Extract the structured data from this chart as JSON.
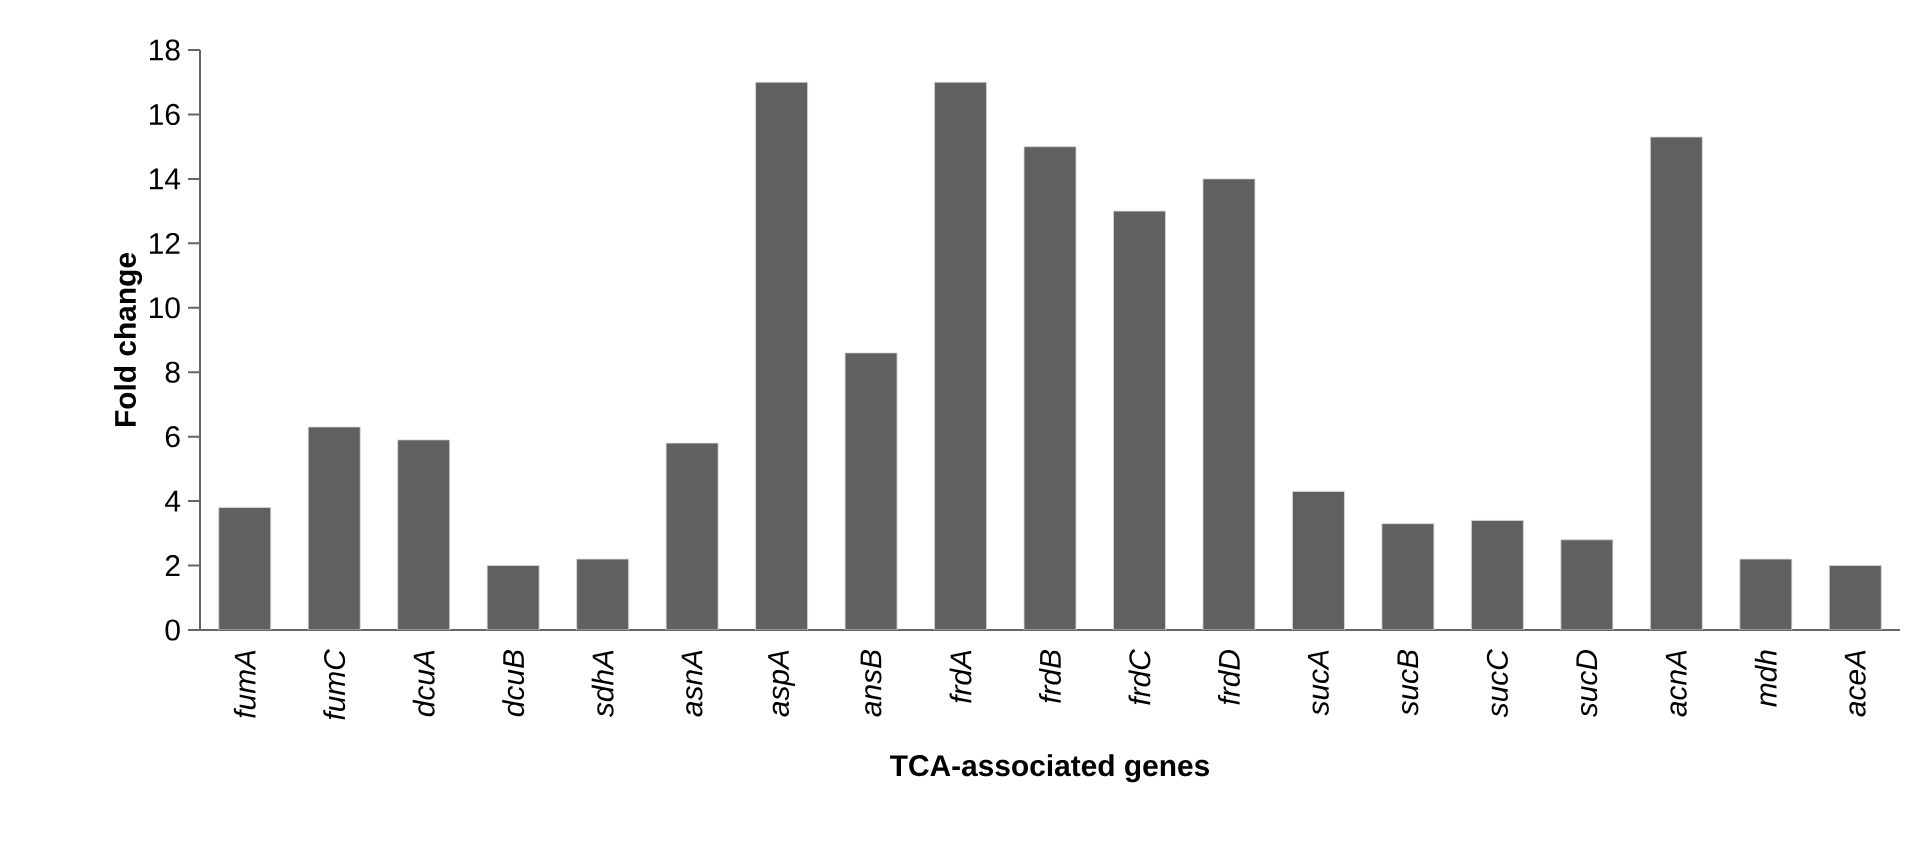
{
  "chart_data": {
    "type": "bar",
    "xlabel": "TCA-associated genes",
    "ylabel": "Fold change",
    "categories": [
      "*fumA*",
      "*fumC*",
      "*dcuA*",
      "*dcuB*",
      "*sdhA*",
      "*asnA*",
      "*aspA*",
      "*ansB*",
      "*frdA*",
      "*frdB*",
      "*frdC*",
      "*frdD*",
      "*sucA*",
      "*sucB*",
      "*sucC*",
      "*sucD*",
      "*acnA*",
      "*mdh*",
      "*aceA*"
    ],
    "values": [
      3.8,
      6.3,
      5.9,
      2.0,
      2.2,
      5.8,
      17.0,
      8.6,
      17.0,
      15.0,
      13.0,
      14.0,
      4.3,
      3.3,
      3.4,
      2.8,
      15.3,
      2.2,
      2.0
    ],
    "color": "#606060",
    "ylim": [
      0,
      18
    ],
    "yticks": [
      0,
      2,
      4,
      6,
      8,
      10,
      12,
      14,
      16,
      18
    ],
    "grid": false
  }
}
